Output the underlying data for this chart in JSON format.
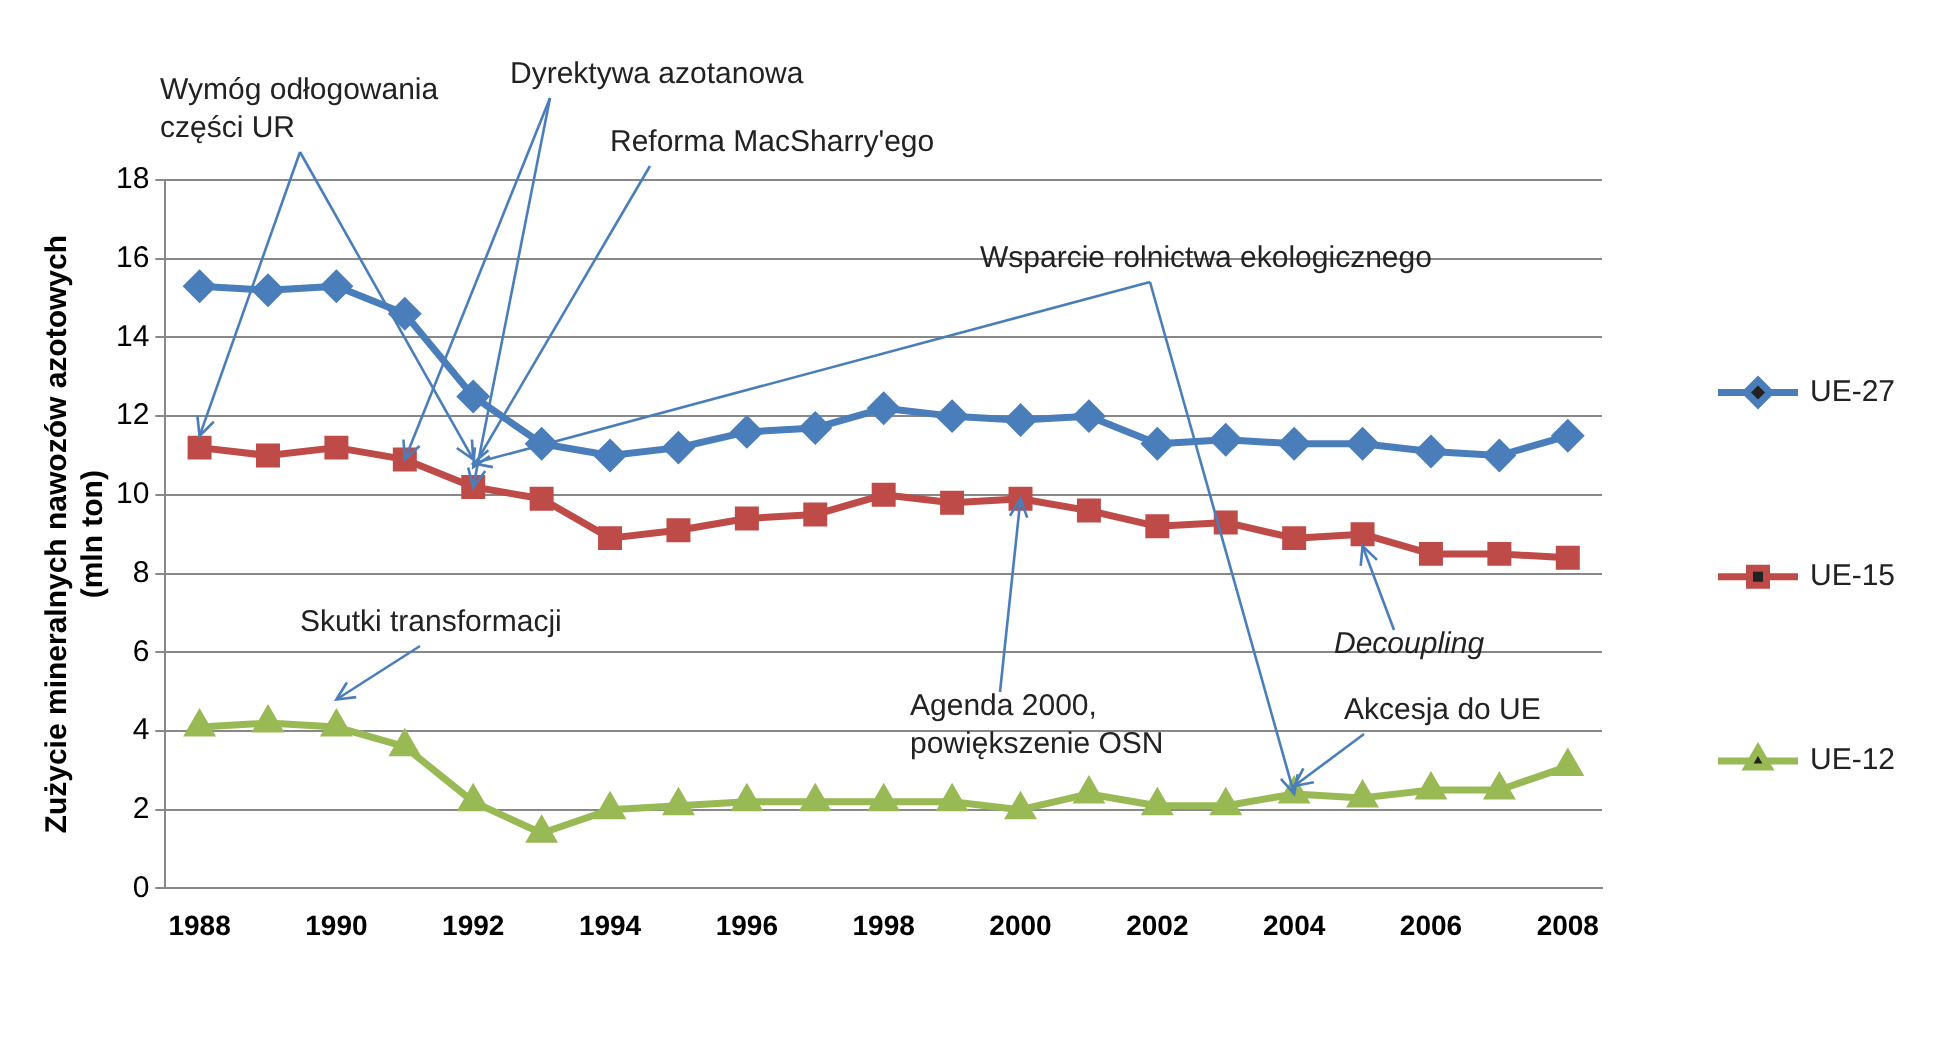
{
  "chart_data": {
    "type": "line",
    "ylabel": "Zużycie mineralnych nawozów azotowych\n(mln ton)",
    "categories": [
      "1988",
      null,
      "1990",
      null,
      "1992",
      null,
      "1994",
      null,
      "1996",
      null,
      "1998",
      null,
      "2000",
      null,
      "2002",
      null,
      "2004",
      null,
      "2006",
      null,
      "2008"
    ],
    "series": [
      {
        "name": "UE-27",
        "color": "#4a7ebb",
        "marker": "diamond",
        "values": [
          15.3,
          15.2,
          15.3,
          14.6,
          12.5,
          11.3,
          11.0,
          11.2,
          11.6,
          11.7,
          12.2,
          12.0,
          11.9,
          12.0,
          11.3,
          11.4,
          11.3,
          11.3,
          11.1,
          11.0,
          11.5
        ]
      },
      {
        "name": "UE-15",
        "color": "#be4b48",
        "marker": "square",
        "values": [
          11.2,
          11.0,
          11.2,
          10.9,
          10.2,
          9.9,
          8.9,
          9.1,
          9.4,
          9.5,
          10.0,
          9.8,
          9.9,
          9.6,
          9.2,
          9.3,
          8.9,
          9.0,
          8.5,
          8.5,
          8.4
        ]
      },
      {
        "name": "UE-12",
        "color": "#98b954",
        "marker": "triangle",
        "values": [
          4.1,
          4.2,
          4.1,
          3.6,
          2.2,
          1.4,
          2.0,
          2.1,
          2.2,
          2.2,
          2.2,
          2.2,
          2.0,
          2.4,
          2.1,
          2.1,
          2.4,
          2.3,
          2.5,
          2.5,
          3.1
        ]
      }
    ],
    "ylim": [
      0,
      18
    ],
    "yticks": [
      0,
      2,
      4,
      6,
      8,
      10,
      12,
      14,
      16,
      18
    ],
    "grid": "y",
    "legend": "right",
    "line_style": "solid",
    "annotations": [
      {
        "text": "Wymóg odłogowania\nczęści UR",
        "x": "1988",
        "y": 11.5
      },
      {
        "text": "Dyrektywa azotanowa",
        "x": "1992",
        "y": 10.2
      },
      "Reforma MacSharry'ego",
      {
        "text": "Wsparcie rolnictwa ekologicznego",
        "x": "2004",
        "y": 2.4
      },
      "Skutki transformacji",
      {
        "text": "Agenda 2000,\npowiększenie OSN",
        "x": "2000",
        "y": 9.9
      },
      {
        "text": "Decoupling",
        "y": 8.7
      },
      {
        "text": "Akcesja do UE",
        "x": "2004",
        "y": 2.6
      }
    ]
  }
}
